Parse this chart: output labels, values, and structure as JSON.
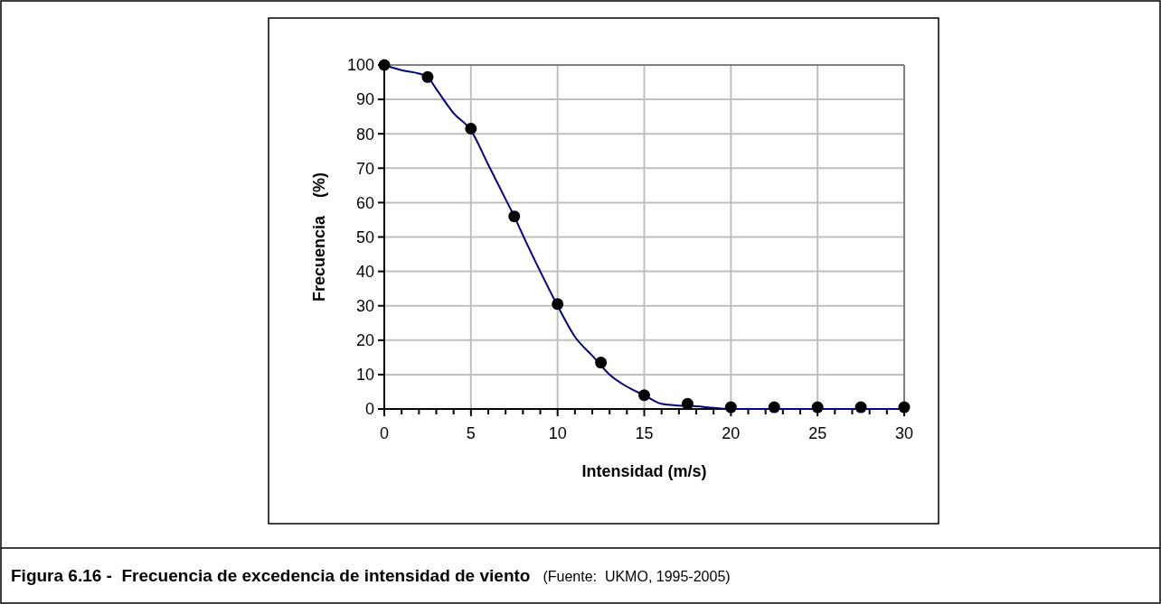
{
  "chart_data": {
    "type": "scatter",
    "title": "Figura 6.16 -  Frecuencia de excedencia de intensidad de viento",
    "annotations": [
      "(Fuente:  UKMO, 1995-2005)"
    ],
    "xlabel": "Intensidad (m/s)",
    "ylabel": "Frecuencia    (%)",
    "xlim": [
      0,
      30
    ],
    "ylim": [
      0,
      100
    ],
    "xticks": [
      0,
      {
        "value": 1,
        "label": null
      },
      {
        "value": 2,
        "label": null
      },
      {
        "value": 3,
        "label": null
      },
      {
        "value": 4,
        "label": null
      },
      5,
      {
        "value": 6,
        "label": null
      },
      {
        "value": 7,
        "label": null
      },
      {
        "value": 8,
        "label": null
      },
      {
        "value": 9,
        "label": null
      },
      10,
      {
        "value": 11,
        "label": null
      },
      {
        "value": 12,
        "label": null
      },
      {
        "value": 13,
        "label": null
      },
      {
        "value": 14,
        "label": null
      },
      15,
      {
        "value": 16,
        "label": null
      },
      {
        "value": 17,
        "label": null
      },
      {
        "value": 18,
        "label": null
      },
      {
        "value": 19,
        "label": null
      },
      20,
      {
        "value": 21,
        "label": null
      },
      {
        "value": 22,
        "label": null
      },
      {
        "value": 23,
        "label": null
      },
      {
        "value": 24,
        "label": null
      },
      25,
      {
        "value": 26,
        "label": null
      },
      {
        "value": 27,
        "label": null
      },
      {
        "value": 28,
        "label": null
      },
      {
        "value": 29,
        "label": null
      },
      30
    ],
    "yticks": [
      0,
      10,
      20,
      30,
      40,
      50,
      60,
      70,
      80,
      90,
      100
    ],
    "grid": true,
    "series": [
      {
        "type": "line",
        "color": "#000080",
        "marker": "none",
        "line_style": "solid",
        "x": [
          0,
          1,
          2,
          2.5,
          3,
          4,
          5,
          6,
          7,
          7.5,
          8,
          9,
          10,
          11,
          12,
          13,
          14,
          15,
          16,
          17,
          18,
          19,
          20,
          25,
          30
        ],
        "values": [
          100,
          98.5,
          97.5,
          96.5,
          93,
          86,
          81,
          71,
          61,
          56,
          50.5,
          40,
          30,
          21,
          15.5,
          10,
          6.5,
          4,
          1.5,
          1,
          0.8,
          0.3,
          0,
          0,
          0
        ]
      },
      {
        "color": "#000000",
        "marker": "circle",
        "x": [
          0,
          2.5,
          5,
          7.5,
          10,
          12.5,
          15,
          17.5,
          20,
          22.5,
          25,
          27.5,
          30
        ],
        "values": [
          100,
          96.5,
          81.5,
          56,
          30.5,
          13.5,
          4,
          1.5,
          0.5,
          0.5,
          0.5,
          0.5,
          0.5
        ]
      }
    ]
  }
}
